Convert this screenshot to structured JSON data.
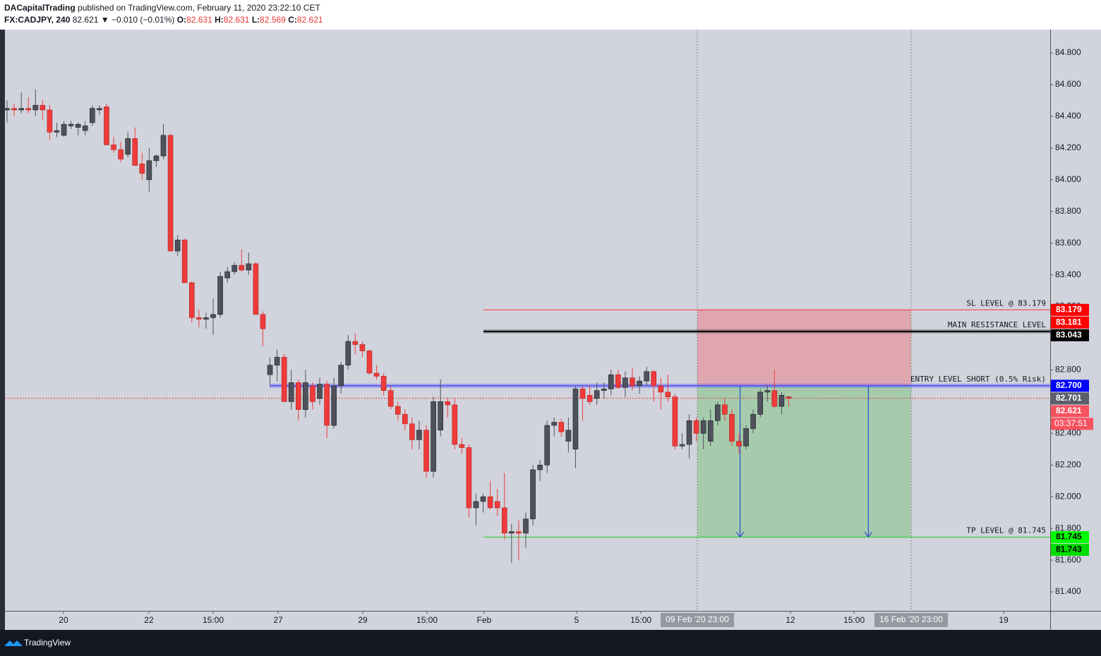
{
  "header": {
    "author": "DACapitalTrading",
    "published": "published on TradingView.com, February 11, 2020 23:22:10 CET",
    "symbol": "FX:CADJPY, 240",
    "last": "82.621",
    "change": "▼ −0.010 (−0.01%)",
    "ohlc": [
      {
        "key": "O:",
        "value": "82.631"
      },
      {
        "key": "H:",
        "value": "82.631"
      },
      {
        "key": "L:",
        "value": "82.569"
      },
      {
        "key": "C:",
        "value": "82.621"
      }
    ]
  },
  "footer": {
    "brand": "TradingView"
  },
  "chart_data": {
    "type": "candlestick",
    "xlim": [
      -0.2,
      146.8
    ],
    "ylim": [
      81.28,
      84.947
    ],
    "yticks": [
      {
        "value": 81.4,
        "label": "81.400"
      },
      {
        "value": 81.6,
        "label": "81.600"
      },
      {
        "value": 81.8,
        "label": "81.800"
      },
      {
        "value": 82,
        "label": "82.000"
      },
      {
        "value": 82.2,
        "label": "82.200"
      },
      {
        "value": 82.4,
        "label": "82.400"
      },
      {
        "value": 82.6,
        "label": "82.600"
      },
      {
        "value": 82.8,
        "label": "82.800"
      },
      {
        "value": 83,
        "label": "83.000"
      },
      {
        "value": 83.2,
        "label": "83.200"
      },
      {
        "value": 83.4,
        "label": "83.400"
      },
      {
        "value": 83.6,
        "label": "83.600"
      },
      {
        "value": 83.8,
        "label": "83.800"
      },
      {
        "value": 84,
        "label": "84.000"
      },
      {
        "value": 84.2,
        "label": "84.200"
      },
      {
        "value": 84.4,
        "label": "84.400"
      },
      {
        "value": 84.6,
        "label": "84.600"
      },
      {
        "value": 84.8,
        "label": "84.800"
      }
    ],
    "xticks": [
      {
        "value": 7.94,
        "label": "20"
      },
      {
        "value": 19.96,
        "label": "22"
      },
      {
        "value": 29.0,
        "label": "15:00"
      },
      {
        "value": 38.14,
        "label": "27"
      },
      {
        "value": 50.06,
        "label": "29"
      },
      {
        "value": 59.1,
        "label": "15:00"
      },
      {
        "value": 67.14,
        "label": "Feb"
      },
      {
        "value": 80.15,
        "label": "5"
      },
      {
        "value": 89.2,
        "label": "15:00"
      },
      {
        "value": 110.25,
        "label": "12"
      },
      {
        "value": 119.2,
        "label": "15:00"
      },
      {
        "value": 140.25,
        "label": "19"
      }
    ],
    "x_markers": [
      {
        "value": 97.14,
        "label": "09 Feb '20  23:00"
      },
      {
        "value": 127.23,
        "label": "16 Feb '20  23:00"
      }
    ],
    "up_color": "#4f525c",
    "down_color": "#ef3b3b",
    "candles": [
      [
        84.44,
        84.5,
        84.36,
        84.45
      ],
      [
        84.45,
        84.48,
        84.4,
        84.44
      ],
      [
        84.44,
        84.55,
        84.42,
        84.45
      ],
      [
        84.45,
        84.52,
        84.42,
        84.44
      ],
      [
        84.44,
        84.57,
        84.4,
        84.47
      ],
      [
        84.47,
        84.5,
        84.38,
        84.44
      ],
      [
        84.44,
        84.47,
        84.25,
        84.3
      ],
      [
        84.3,
        84.36,
        84.27,
        84.31
      ],
      [
        84.28,
        84.37,
        84.27,
        84.35
      ],
      [
        84.34,
        84.37,
        84.32,
        84.35
      ],
      [
        84.33,
        84.36,
        84.28,
        84.35
      ],
      [
        84.31,
        84.37,
        84.28,
        84.34
      ],
      [
        84.36,
        84.47,
        84.34,
        84.45
      ],
      [
        84.44,
        84.47,
        84.41,
        84.45
      ],
      [
        84.46,
        84.48,
        84.22,
        84.22
      ],
      [
        84.22,
        84.27,
        84.17,
        84.19
      ],
      [
        84.19,
        84.24,
        84.11,
        84.13
      ],
      [
        84.16,
        84.3,
        84.14,
        84.26
      ],
      [
        84.26,
        84.33,
        84.09,
        84.09
      ],
      [
        84.1,
        84.17,
        84.0,
        84.04
      ],
      [
        84.0,
        84.2,
        83.92,
        84.12
      ],
      [
        84.12,
        84.16,
        84.08,
        84.15
      ],
      [
        84.15,
        84.35,
        84.13,
        84.28
      ],
      [
        84.28,
        84.29,
        83.55,
        83.55
      ],
      [
        83.55,
        83.65,
        83.52,
        83.62
      ],
      [
        83.62,
        83.63,
        83.35,
        83.35
      ],
      [
        83.35,
        83.36,
        83.1,
        83.13
      ],
      [
        83.13,
        83.18,
        83.07,
        83.12
      ],
      [
        83.12,
        83.16,
        83.06,
        83.13
      ],
      [
        83.13,
        83.25,
        83.02,
        83.15
      ],
      [
        83.15,
        83.42,
        83.13,
        83.39
      ],
      [
        83.38,
        83.45,
        83.35,
        83.42
      ],
      [
        83.42,
        83.48,
        83.4,
        83.46
      ],
      [
        83.46,
        83.56,
        83.42,
        83.43
      ],
      [
        83.43,
        83.54,
        83.4,
        83.47
      ],
      [
        83.47,
        83.48,
        83.15,
        83.15
      ],
      [
        83.15,
        83.17,
        82.95,
        83.06
      ],
      [
        82.77,
        82.88,
        82.7,
        82.83
      ],
      [
        82.83,
        82.93,
        82.73,
        82.88
      ],
      [
        82.88,
        82.9,
        82.6,
        82.6
      ],
      [
        82.6,
        82.8,
        82.55,
        82.72
      ],
      [
        82.72,
        82.74,
        82.48,
        82.55
      ],
      [
        82.55,
        82.8,
        82.5,
        82.72
      ],
      [
        82.7,
        82.72,
        82.55,
        82.6
      ],
      [
        82.62,
        82.75,
        82.58,
        82.71
      ],
      [
        82.71,
        82.73,
        82.37,
        82.45
      ],
      [
        82.45,
        82.75,
        82.43,
        82.7
      ],
      [
        82.7,
        82.85,
        82.65,
        82.83
      ],
      [
        82.83,
        83.02,
        82.8,
        82.98
      ],
      [
        82.98,
        83.03,
        82.9,
        82.96
      ],
      [
        82.96,
        82.98,
        82.88,
        82.92
      ],
      [
        82.92,
        82.93,
        82.77,
        82.78
      ],
      [
        82.78,
        82.83,
        82.74,
        82.76
      ],
      [
        82.76,
        82.78,
        82.64,
        82.67
      ],
      [
        82.67,
        82.7,
        82.55,
        82.57
      ],
      [
        82.57,
        82.6,
        82.48,
        82.52
      ],
      [
        82.52,
        82.55,
        82.42,
        82.46
      ],
      [
        82.46,
        82.5,
        82.3,
        82.36
      ],
      [
        82.36,
        82.48,
        82.3,
        82.42
      ],
      [
        82.42,
        82.45,
        82.12,
        82.16
      ],
      [
        82.16,
        82.63,
        82.12,
        82.6
      ],
      [
        82.42,
        82.74,
        82.38,
        82.6
      ],
      [
        82.6,
        82.62,
        82.5,
        82.58
      ],
      [
        82.58,
        82.62,
        82.3,
        82.33
      ],
      [
        82.33,
        82.37,
        82.27,
        82.31
      ],
      [
        82.31,
        82.33,
        81.87,
        81.93
      ],
      [
        81.93,
        82.02,
        81.82,
        81.97
      ],
      [
        81.97,
        82.02,
        81.9,
        82.0
      ],
      [
        82.0,
        82.1,
        81.92,
        81.93
      ],
      [
        81.97,
        82.05,
        81.88,
        81.93
      ],
      [
        81.93,
        82.15,
        81.73,
        81.77
      ],
      [
        81.77,
        81.83,
        81.58,
        81.78
      ],
      [
        81.78,
        81.85,
        81.6,
        81.77
      ],
      [
        81.77,
        81.9,
        81.68,
        81.86
      ],
      [
        81.86,
        82.2,
        81.82,
        82.17
      ],
      [
        82.17,
        82.23,
        82.1,
        82.2
      ],
      [
        82.2,
        82.48,
        82.15,
        82.45
      ],
      [
        82.45,
        82.5,
        82.38,
        82.47
      ],
      [
        82.47,
        82.49,
        82.38,
        82.41
      ],
      [
        82.35,
        82.5,
        82.28,
        82.42
      ],
      [
        82.3,
        82.7,
        82.18,
        82.68
      ],
      [
        82.68,
        82.7,
        82.48,
        82.62
      ],
      [
        82.64,
        82.7,
        82.58,
        82.6
      ],
      [
        82.62,
        82.72,
        82.58,
        82.67
      ],
      [
        82.67,
        82.72,
        82.62,
        82.68
      ],
      [
        82.68,
        82.8,
        82.64,
        82.77
      ],
      [
        82.77,
        82.8,
        82.68,
        82.69
      ],
      [
        82.69,
        82.79,
        82.63,
        82.75
      ],
      [
        82.75,
        82.81,
        82.67,
        82.7
      ],
      [
        82.7,
        82.76,
        82.65,
        82.73
      ],
      [
        82.73,
        82.82,
        82.7,
        82.79
      ],
      [
        82.79,
        82.8,
        82.6,
        82.7
      ],
      [
        82.7,
        82.75,
        82.55,
        82.66
      ],
      [
        82.66,
        82.77,
        82.6,
        82.63
      ],
      [
        82.63,
        82.65,
        82.3,
        82.32
      ],
      [
        82.32,
        82.4,
        82.3,
        82.33
      ],
      [
        82.33,
        82.52,
        82.24,
        82.48
      ],
      [
        82.48,
        82.5,
        82.35,
        82.4
      ],
      [
        82.4,
        82.5,
        82.3,
        82.48
      ],
      [
        82.35,
        82.55,
        82.32,
        82.48
      ],
      [
        82.48,
        82.6,
        82.45,
        82.58
      ],
      [
        82.58,
        82.62,
        82.48,
        82.52
      ],
      [
        82.52,
        82.55,
        82.32,
        82.35
      ],
      [
        82.35,
        82.4,
        82.27,
        82.32
      ],
      [
        82.32,
        82.45,
        82.3,
        82.43
      ],
      [
        82.43,
        82.55,
        82.4,
        82.52
      ],
      [
        82.52,
        82.68,
        82.5,
        82.66
      ],
      [
        82.66,
        82.7,
        82.6,
        82.67
      ],
      [
        82.67,
        82.8,
        82.56,
        82.57
      ],
      [
        82.57,
        82.66,
        82.52,
        82.64
      ],
      [
        82.631,
        82.631,
        82.569,
        82.621
      ]
    ],
    "levels": [
      {
        "name": "SL LEVEL @ 83.179",
        "value": 83.179,
        "start": 67.04,
        "color": "#ff3030"
      },
      {
        "name": "MAIN RESISTANCE LEVEL",
        "value": 83.043,
        "start": 67.04,
        "color": "#000000"
      },
      {
        "name": "ENTRY LEVEL SHORT (0.5% Risk)",
        "value": 82.7,
        "start": 36.95,
        "color": "#2b2bff"
      },
      {
        "name": "TP LEVEL @ 81.745",
        "value": 81.745,
        "start": 67.04,
        "color": "#22cc22"
      }
    ],
    "position": {
      "entry": 82.7,
      "stop": 83.179,
      "target": 81.745,
      "start": 97.14,
      "end": 127.23
    },
    "current_price": 82.621,
    "countdown": "03:37:51",
    "price_badges": [
      {
        "label": "83.179",
        "value": 83.179,
        "color": "#ff0000"
      },
      {
        "label": "83.181",
        "value": 83.181,
        "color": "#ff0000"
      },
      {
        "label": "83.043",
        "value": 83.043,
        "color": "#000000"
      },
      {
        "label": "82.700",
        "value": 82.7,
        "color": "#0000ff"
      },
      {
        "label": "82.701",
        "value": 82.701,
        "color": "#5d606b"
      },
      {
        "label": "82.621",
        "value": 82.621,
        "color": "#f7525f"
      },
      {
        "label": "81.745",
        "value": 81.745,
        "color": "#00ff00"
      },
      {
        "label": "81.743",
        "value": 81.743,
        "color": "#00dd00"
      }
    ]
  }
}
